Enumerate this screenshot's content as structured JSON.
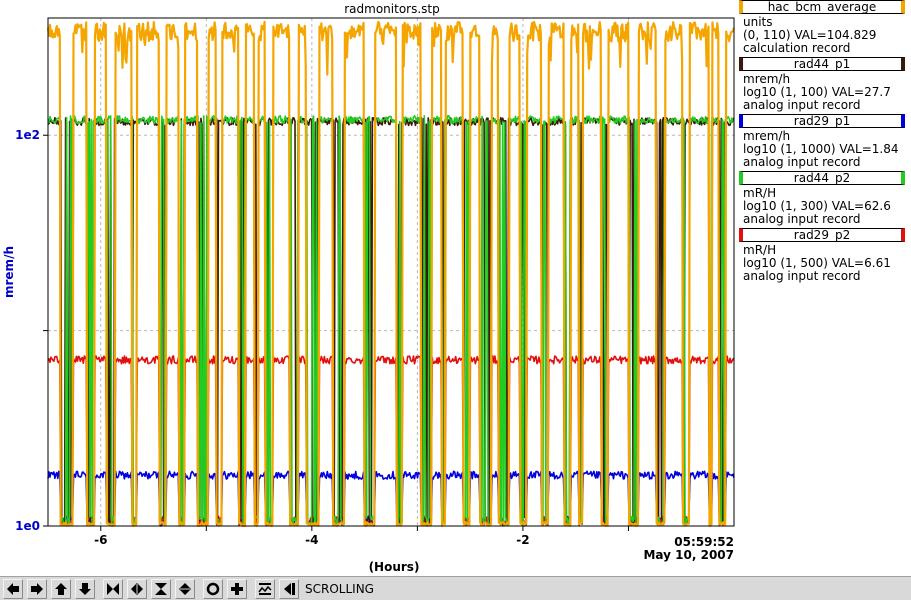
{
  "chart_data": {
    "type": "line",
    "title": "radmonitors.stp",
    "xlabel": "(Hours)",
    "ylabel": "mrem/h",
    "xlim": [
      -6.5,
      0.0
    ],
    "ylim_log10": [
      0,
      2.6
    ],
    "y_scale": "log",
    "x_ticks": [
      {
        "value": -6,
        "label": "-6"
      },
      {
        "value": -4,
        "label": "-4"
      },
      {
        "value": -2,
        "label": "-2"
      }
    ],
    "y_ticks": [
      {
        "log10": 0,
        "label": "1e0"
      },
      {
        "log10": 1,
        "label": ""
      },
      {
        "log10": 2,
        "label": "1e2"
      }
    ],
    "x_end_time": "05:59:52",
    "x_end_date": "May 10, 2007",
    "grid": true,
    "legend_position": "right",
    "series": [
      {
        "name": "hac_bcm_average",
        "color": "#f5a500",
        "baseline_log10": 2.53,
        "low_log10": 0.0
      },
      {
        "name": "rad44_p1",
        "color": "#3a1a0a",
        "baseline_log10": 2.07,
        "low_log10": 0.0
      },
      {
        "name": "rad29_p1",
        "color": "#0000e0",
        "baseline_log10": 0.26,
        "low_log10": 0.0
      },
      {
        "name": "rad44_p2",
        "color": "#22cc22",
        "baseline_log10": 2.08,
        "low_log10": 0.0
      },
      {
        "name": "rad29_p2",
        "color": "#e01010",
        "baseline_log10": 0.85,
        "low_log10": 0.0
      }
    ]
  },
  "legend": [
    {
      "name": "hac_bcm_average",
      "color": "#f5a500",
      "line1": "units",
      "line2": "(0, 110) VAL=104.829",
      "line3": "calculation record"
    },
    {
      "name": "rad44_p1",
      "color": "#3a1a0a",
      "line1": "mrem/h",
      "line2": "log10 (1, 100) VAL=27.7",
      "line3": "analog input record"
    },
    {
      "name": "rad29_p1",
      "color": "#0000e0",
      "line1": "mrem/h",
      "line2": "log10 (1, 1000) VAL=1.84",
      "line3": "analog input record"
    },
    {
      "name": "rad44_p2",
      "color": "#22cc22",
      "line1": "mR/H",
      "line2": "log10 (1, 300) VAL=62.6",
      "line3": "analog input record"
    },
    {
      "name": "rad29_p2",
      "color": "#e01010",
      "line1": "mR/H",
      "line2": "log10 (1, 500) VAL=6.61",
      "line3": "analog input record"
    }
  ],
  "toolbar": {
    "status": "SCROLLING",
    "buttons": [
      "arrow-left-icon",
      "arrow-right-icon",
      "arrow-up-icon",
      "arrow-down-icon",
      "zoom-in-horizontal-icon",
      "zoom-out-horizontal-icon",
      "zoom-in-vertical-icon",
      "zoom-out-vertical-icon",
      "circle-icon",
      "plus-icon",
      "auto-scale-icon",
      "scroll-back-icon"
    ]
  }
}
